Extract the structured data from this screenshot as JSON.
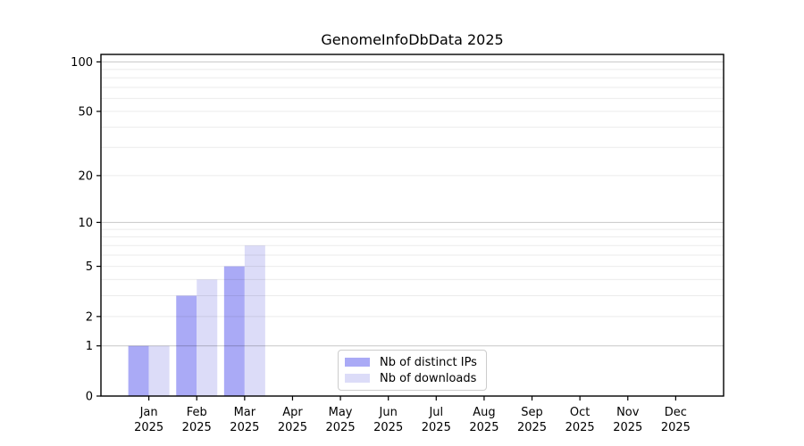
{
  "chart_data": {
    "type": "bar",
    "title": "GenomeInfoDbData 2025",
    "categories": [
      "Jan",
      "Feb",
      "Mar",
      "Apr",
      "May",
      "Jun",
      "Jul",
      "Aug",
      "Sep",
      "Oct",
      "Nov",
      "Dec"
    ],
    "category_year": "2025",
    "series": [
      {
        "name": "Nb of distinct IPs",
        "color": "#aaaaf6",
        "values": [
          1,
          3,
          5,
          0,
          0,
          0,
          0,
          0,
          0,
          0,
          0,
          0
        ]
      },
      {
        "name": "Nb of downloads",
        "color": "#dcdcf8",
        "values": [
          1,
          4,
          7,
          0,
          0,
          0,
          0,
          0,
          0,
          0,
          0,
          0
        ]
      }
    ],
    "xlabel": "",
    "ylabel": "",
    "yscale": "log1p",
    "ylim": [
      0,
      111
    ],
    "yticks": [
      0,
      1,
      2,
      5,
      10,
      20,
      50,
      100
    ],
    "grid": {
      "on": true,
      "major_lines": [
        1,
        10,
        100
      ],
      "minor_lines": [
        2,
        3,
        4,
        5,
        6,
        7,
        8,
        9,
        20,
        30,
        40,
        50,
        60,
        70,
        80,
        90
      ]
    },
    "legend_position": "inside-bottom-center"
  }
}
